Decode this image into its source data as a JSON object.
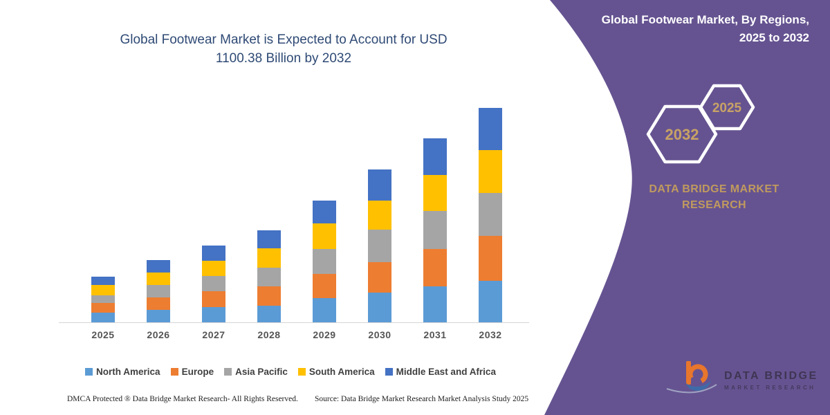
{
  "main_title": {
    "line1": "Global Footwear Market is Expected to Account for USD",
    "line2": "1100.38 Billion by 2032"
  },
  "chart_data": {
    "type": "bar",
    "stacked": true,
    "title": "Global Footwear Market is Expected to Account for USD 1100.38 Billion by 2032",
    "unit": "USD Billion",
    "categories": [
      "2025",
      "2026",
      "2027",
      "2028",
      "2029",
      "2030",
      "2031",
      "2032"
    ],
    "series": [
      {
        "name": "North America",
        "color": "#5B9BD5",
        "values": [
          50.6,
          64.0,
          77.8,
          86.0,
          123.8,
          153.2,
          182.9,
          212.3
        ]
      },
      {
        "name": "Europe",
        "color": "#ED7D31",
        "values": [
          47.1,
          64.0,
          81.4,
          96.6,
          123.8,
          155.7,
          194.6,
          230.0
        ]
      },
      {
        "name": "Asia Pacific",
        "color": "#A5A5A5",
        "values": [
          41.4,
          63.0,
          77.8,
          96.6,
          129.8,
          165.2,
          194.6,
          221.8
        ]
      },
      {
        "name": "South America",
        "color": "#FFC000",
        "values": [
          53.1,
          65.0,
          77.8,
          101.5,
          129.8,
          151.1,
          182.9,
          216.9
        ]
      },
      {
        "name": "Middle East and Africa",
        "color": "#4472C4",
        "values": [
          41.4,
          64.0,
          77.8,
          90.9,
          117.8,
          159.2,
          188.6,
          219.4
        ]
      }
    ],
    "totals_estimated": [
      233.6,
      320.0,
      392.6,
      471.6,
      625.0,
      784.4,
      943.6,
      1100.4
    ],
    "ylim": [
      0,
      1155
    ],
    "xlabel": "",
    "ylabel": "",
    "grid": false,
    "y_axis_shown": false,
    "legend_position": "bottom"
  },
  "footer": {
    "dmca": "DMCA Protected ® Data Bridge Market Research-  All Rights Reserved.",
    "source": "Source: Data Bridge Market Research  Market Analysis Study 2025"
  },
  "side_panel": {
    "title_line1": "Global Footwear Market, By Regions,",
    "title_line2": "2025 to 2032",
    "hexagon_back_year": "2032",
    "hexagon_front_year": "2025",
    "brand_line1": "DATA BRIDGE MARKET",
    "brand_line2": "RESEARCH",
    "logo_title": "DATA BRIDGE",
    "logo_subtitle": "MARKET RESEARCH",
    "background_color": "#655391",
    "accent_gold": "#C8A265"
  }
}
